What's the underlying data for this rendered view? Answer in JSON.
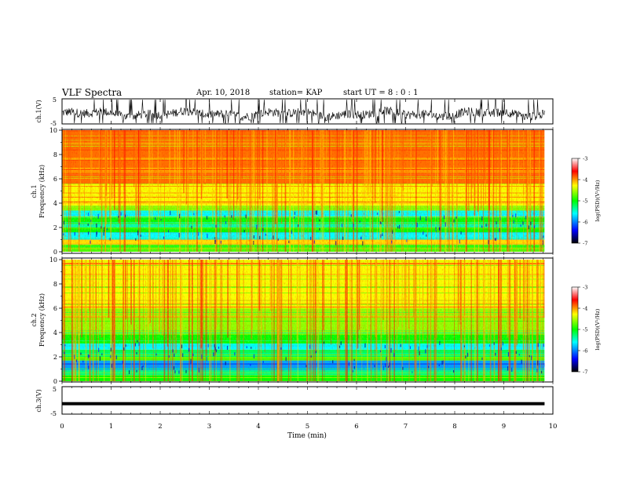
{
  "header": {
    "title": "VLF Spectra",
    "date": "Apr. 10, 2018",
    "station": "station= KAP",
    "start_ut": "start UT = 8 : 0 : 1"
  },
  "colors": {
    "scale": [
      "#000000",
      "#0000ff",
      "#00ffff",
      "#00ff00",
      "#ffff00",
      "#ff0000",
      "#ffffff"
    ]
  },
  "chart_data": [
    {
      "type": "line",
      "name": "ch1-waveform",
      "ylabel": "ch.1(V)",
      "ylim": [
        -5,
        5
      ],
      "yticks": [
        "5",
        "-5"
      ],
      "xlim": [
        0,
        10
      ],
      "description_of_signal": "noisy waveform centered near -1 V",
      "x_extent": [
        0,
        9.83
      ]
    },
    {
      "type": "heatmap",
      "name": "ch1-spectrogram",
      "ylabel": "ch.1 Frequency (kHz)",
      "ylim": [
        0,
        10
      ],
      "yticks": [
        "0",
        "2",
        "4",
        "6",
        "8",
        "10"
      ],
      "xlim": [
        0,
        10
      ],
      "x_extent": [
        0,
        9.83
      ],
      "colorbar": {
        "label": "log(PSD)(V²/Hz)",
        "ticks": [
          "-3",
          "-4",
          "-5",
          "-6",
          "-7"
        ],
        "range": [
          -7,
          -3
        ]
      },
      "bands": [
        {
          "f": [
            0.0,
            0.6
          ],
          "level": -4.8
        },
        {
          "f": [
            0.6,
            1.0
          ],
          "level": -4.2
        },
        {
          "f": [
            1.0,
            1.6
          ],
          "level": -5.6
        },
        {
          "f": [
            1.6,
            2.0
          ],
          "level": -5.0
        },
        {
          "f": [
            2.0,
            2.4
          ],
          "level": -5.4
        },
        {
          "f": [
            2.4,
            2.9
          ],
          "level": -5.0
        },
        {
          "f": [
            2.9,
            3.4
          ],
          "level": -5.6
        },
        {
          "f": [
            3.4,
            3.8
          ],
          "level": -4.6
        },
        {
          "f": [
            3.8,
            5.6
          ],
          "level": -4.3
        },
        {
          "f": [
            5.6,
            10.0
          ],
          "level": -3.9
        }
      ]
    },
    {
      "type": "heatmap",
      "name": "ch2-spectrogram",
      "ylabel": "ch.2 Frequency (kHz)",
      "ylim": [
        0,
        10
      ],
      "yticks": [
        "0",
        "2",
        "4",
        "6",
        "8",
        "10"
      ],
      "xlim": [
        0,
        10
      ],
      "x_extent": [
        0,
        9.83
      ],
      "colorbar": {
        "label": "log(PSD)(V²/Hz)",
        "ticks": [
          "-3",
          "-4",
          "-5",
          "-6",
          "-7"
        ],
        "range": [
          -7,
          -3
        ]
      },
      "bands": [
        {
          "f": [
            0.0,
            0.5
          ],
          "level": -5.0
        },
        {
          "f": [
            0.5,
            0.9
          ],
          "level": -5.3
        },
        {
          "f": [
            0.9,
            1.7
          ],
          "level": -5.9
        },
        {
          "f": [
            1.7,
            2.0
          ],
          "level": -4.8
        },
        {
          "f": [
            2.0,
            2.6
          ],
          "level": -5.2
        },
        {
          "f": [
            2.6,
            3.1
          ],
          "level": -5.6
        },
        {
          "f": [
            3.1,
            4.0
          ],
          "level": -5.0
        },
        {
          "f": [
            4.0,
            6.0
          ],
          "level": -4.6
        },
        {
          "f": [
            6.0,
            10.0
          ],
          "level": -4.3
        }
      ]
    },
    {
      "type": "line",
      "name": "ch3-waveform",
      "ylabel": "ch.3(V)",
      "ylim": [
        -5,
        5
      ],
      "yticks": [
        "5",
        "-5"
      ],
      "xlim": [
        0,
        10
      ],
      "x_extent": [
        0,
        9.83
      ],
      "constant_value": -1.2,
      "xlabel": "Time (min)",
      "xticks": [
        "0",
        "1",
        "2",
        "3",
        "4",
        "5",
        "6",
        "7",
        "8",
        "9",
        "10"
      ]
    }
  ]
}
